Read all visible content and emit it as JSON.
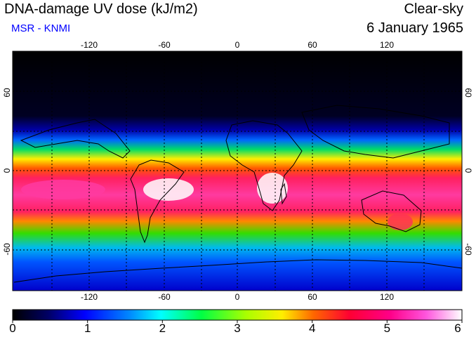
{
  "title": "DNA-damage UV dose (kJ/m2)",
  "subtitle": "MSR - KNMI",
  "sky": "Clear-sky",
  "date": "6 January 1965",
  "colors": {
    "subtitle": "#0000ff"
  },
  "lon_ticks": [
    "-120",
    "-60",
    "0",
    "60",
    "120"
  ],
  "lat_ticks_left": [
    "60",
    "0",
    "-60"
  ],
  "lat_ticks_right": [
    "60",
    "0",
    "-60"
  ],
  "colorbar": {
    "min": 0,
    "max": 6,
    "labels": [
      "0",
      "1",
      "2",
      "3",
      "4",
      "5",
      "6"
    ]
  }
}
